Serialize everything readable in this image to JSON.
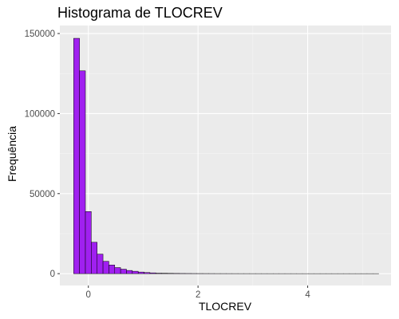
{
  "chart_data": {
    "type": "bar",
    "title": "Histograma de TLOCREV",
    "xlabel": "TLOCREV",
    "ylabel": "Frequência",
    "xlim": [
      -0.52,
      5.52
    ],
    "ylim": [
      -7400,
      155000
    ],
    "x_ticks": [
      0,
      2,
      4
    ],
    "x_tick_labels": [
      "0",
      "2",
      "4"
    ],
    "y_ticks": [
      0,
      50000,
      100000,
      150000
    ],
    "y_tick_labels": [
      "0",
      "50000",
      "100000",
      "150000"
    ],
    "grid": true,
    "bin_width": 0.107,
    "first_bin_start": -0.268,
    "counts": [
      147000,
      126700,
      38800,
      19600,
      12200,
      7700,
      5400,
      3800,
      2800,
      2000,
      1500,
      1000,
      700,
      500,
      300,
      250,
      200,
      150,
      120,
      100,
      80,
      70,
      60,
      50,
      40,
      35,
      30,
      25,
      20,
      18,
      16,
      14,
      12,
      10,
      9,
      8,
      7,
      6,
      5,
      5,
      4,
      4,
      3,
      3,
      2,
      2,
      2,
      1,
      1,
      1,
      1,
      1
    ],
    "colors": {
      "fill": "#a020f0",
      "outline": "#000000",
      "panel": "#ebebeb",
      "grid_major": "#ffffff",
      "grid_minor": "#f5f5f5",
      "tick_label": "#4d4d4d"
    }
  }
}
